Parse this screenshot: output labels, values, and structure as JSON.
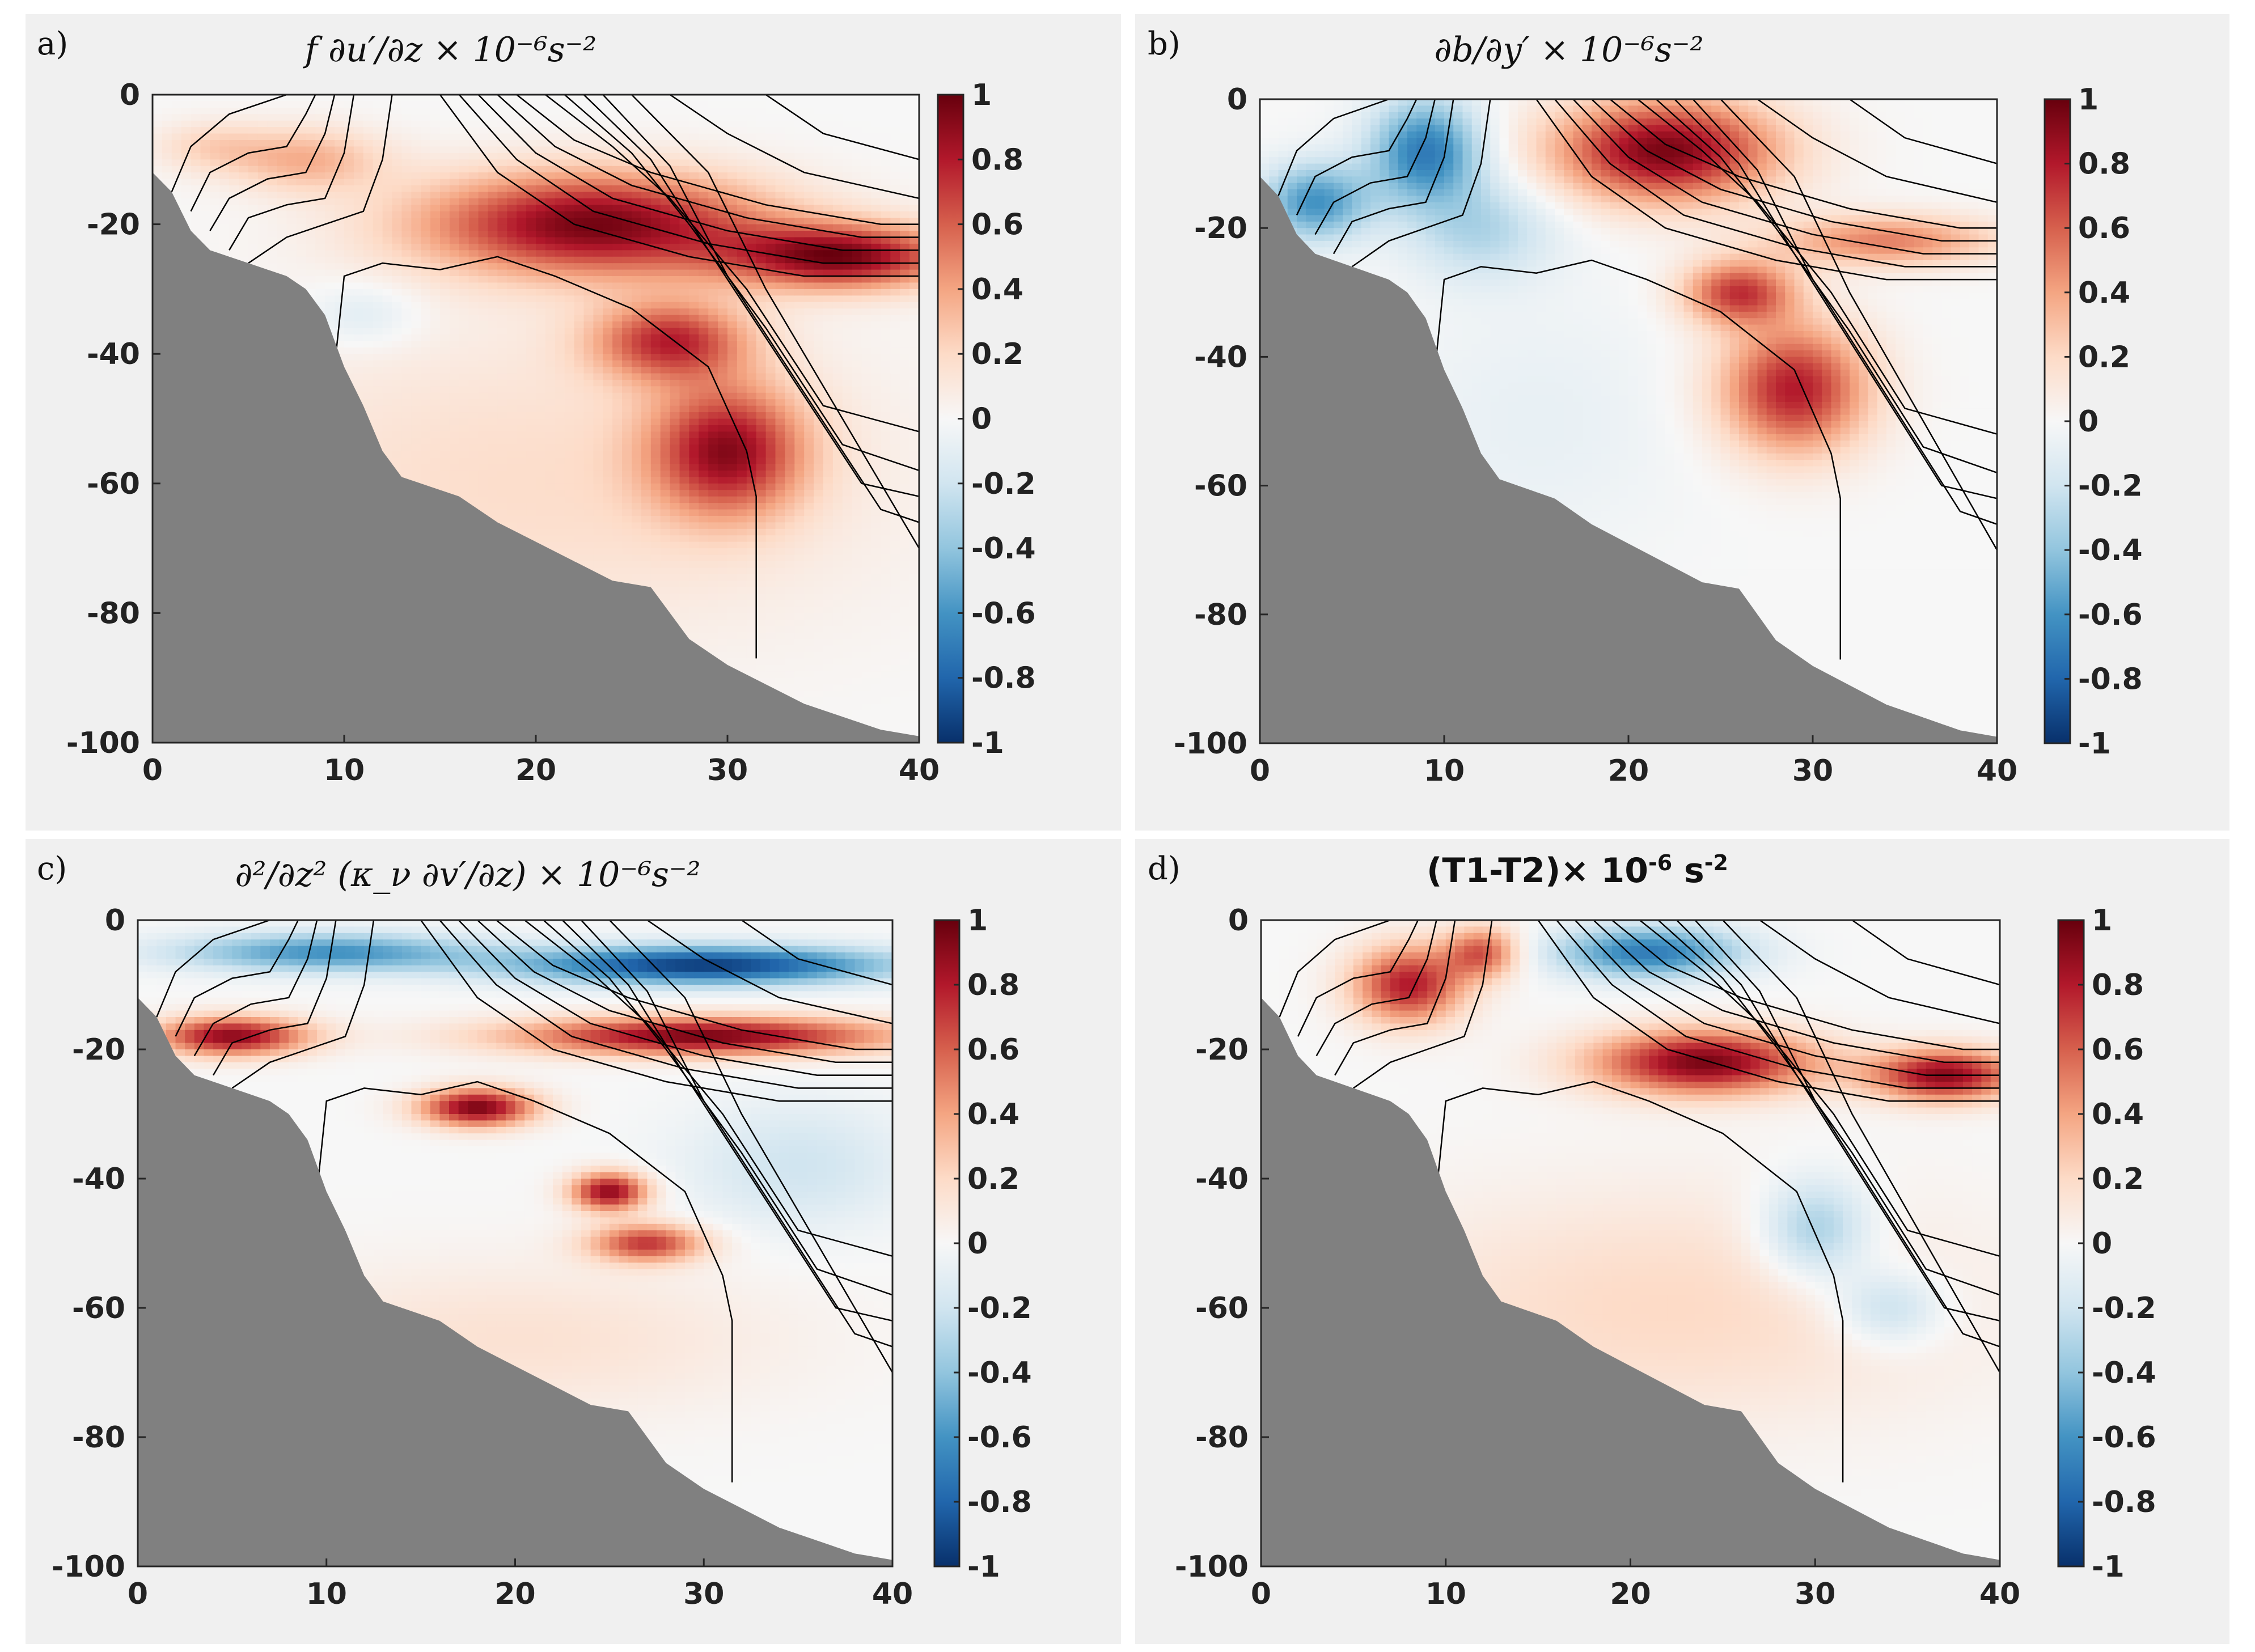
{
  "chart_data": [
    {
      "type": "heatmap",
      "label": "a)",
      "title": "f ∂u′/∂z × 10⁻⁶s⁻²",
      "xlim": [
        0,
        40
      ],
      "ylim": [
        -100,
        0
      ],
      "xticks": [
        "0",
        "10",
        "20",
        "30",
        "40"
      ],
      "yticks": [
        "0",
        "-20",
        "-40",
        "-60",
        "-80",
        "-100"
      ],
      "colorbar": {
        "min": -1,
        "max": 1,
        "ticks": [
          "1",
          "0.8",
          "0.6",
          "0.4",
          "0.2",
          "0",
          "-0.2",
          "-0.4",
          "-0.6",
          "-0.8",
          "-1"
        ]
      },
      "features": [
        {
          "x": 23,
          "y": -20,
          "value": 0.95
        },
        {
          "x": 36,
          "y": -25,
          "value": 0.9
        },
        {
          "x": 30,
          "y": -55,
          "value": 0.8
        },
        {
          "x": 8,
          "y": -10,
          "value": 0.35
        },
        {
          "x": 11,
          "y": -34,
          "value": -0.15
        }
      ]
    },
    {
      "type": "heatmap",
      "label": "b)",
      "title": "∂b/∂y′ × 10⁻⁶s⁻²",
      "xlim": [
        0,
        40
      ],
      "ylim": [
        -100,
        0
      ],
      "xticks": [
        "0",
        "10",
        "20",
        "30",
        "40"
      ],
      "yticks": [
        "0",
        "-20",
        "-40",
        "-60",
        "-80",
        "-100"
      ],
      "colorbar": {
        "min": -1,
        "max": 1,
        "ticks": [
          "1",
          "0.8",
          "0.6",
          "0.4",
          "0.2",
          "0",
          "-0.2",
          "-0.4",
          "-0.6",
          "-0.8",
          "-1"
        ]
      },
      "features": [
        {
          "x": 22,
          "y": -8,
          "value": 0.95
        },
        {
          "x": 29,
          "y": -45,
          "value": 0.8
        },
        {
          "x": 26,
          "y": -30,
          "value": 0.7
        },
        {
          "x": 9,
          "y": -8,
          "value": -0.7
        },
        {
          "x": 3,
          "y": -16,
          "value": -0.6
        }
      ]
    },
    {
      "type": "heatmap",
      "label": "c)",
      "title": "∂²/∂z² (κ_ν ∂v′/∂z) × 10⁻⁶s⁻²",
      "xlim": [
        0,
        40
      ],
      "ylim": [
        -100,
        0
      ],
      "xticks": [
        "0",
        "10",
        "20",
        "30",
        "40"
      ],
      "yticks": [
        "0",
        "-20",
        "-40",
        "-60",
        "-80",
        "-100"
      ],
      "colorbar": {
        "min": -1,
        "max": 1,
        "ticks": [
          "1",
          "0.8",
          "0.6",
          "0.4",
          "0.2",
          "0",
          "-0.2",
          "-0.4",
          "-0.6",
          "-0.8",
          "-1"
        ]
      },
      "features": [
        {
          "x": 30,
          "y": -18,
          "value": 0.95
        },
        {
          "x": 30,
          "y": -7,
          "value": -0.95
        },
        {
          "x": 18,
          "y": -29,
          "value": 0.95
        },
        {
          "x": 25,
          "y": -42,
          "value": 0.9
        },
        {
          "x": 5,
          "y": -18,
          "value": 0.9
        }
      ]
    },
    {
      "type": "heatmap",
      "label": "d)",
      "title": "(T1-T2)× 10",
      "title_exp1": "-6",
      "title_mid": " s",
      "title_exp2": "-2",
      "xlim": [
        0,
        40
      ],
      "ylim": [
        -100,
        0
      ],
      "xticks": [
        "0",
        "10",
        "20",
        "30",
        "40"
      ],
      "yticks": [
        "0",
        "-20",
        "-40",
        "-60",
        "-80",
        "-100"
      ],
      "colorbar": {
        "min": -1,
        "max": 1,
        "ticks": [
          "1",
          "0.8",
          "0.6",
          "0.4",
          "0.2",
          "0",
          "-0.2",
          "-0.4",
          "-0.6",
          "-0.8",
          "-1"
        ]
      },
      "features": [
        {
          "x": 24,
          "y": -22,
          "value": 0.95
        },
        {
          "x": 37,
          "y": -24,
          "value": 0.9
        },
        {
          "x": 8,
          "y": -10,
          "value": 0.8
        },
        {
          "x": 21,
          "y": -5,
          "value": -0.7
        },
        {
          "x": 30,
          "y": -48,
          "value": -0.4
        }
      ]
    }
  ],
  "colors": {
    "panel_bg": "#f0f0f0",
    "topography": "#808080",
    "contour": "#000000",
    "colormap_low": "#08306b",
    "colormap_mid": "#f7f7f7",
    "colormap_high": "#67000d"
  }
}
